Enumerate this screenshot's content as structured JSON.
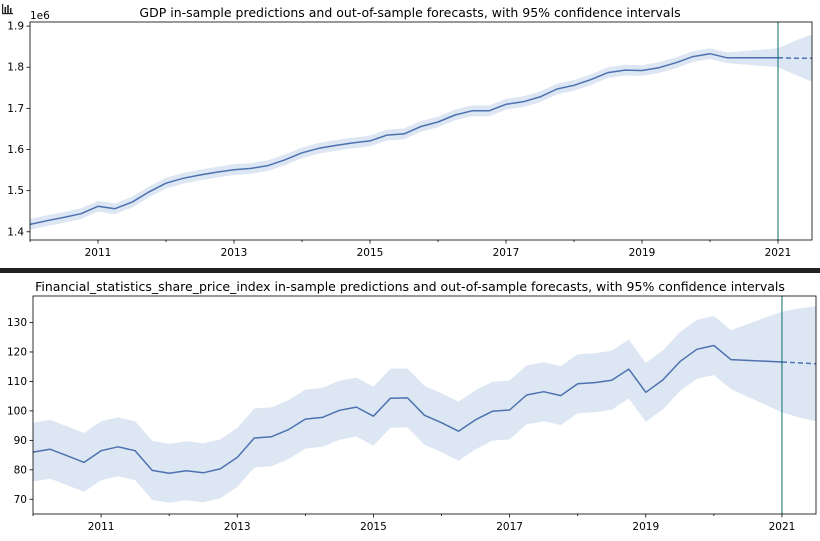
{
  "corner_icon": "bar-chart-icon",
  "chart_data": [
    {
      "type": "line",
      "title": "GDP in-sample predictions and out-of-sample forecasts, with 95% confidence intervals",
      "y_offset_label": "1e6",
      "y_scale": 1000000,
      "xlim": [
        2010.0,
        2021.5
      ],
      "ylim": [
        1.38,
        1.91
      ],
      "yticks": [
        1.4,
        1.5,
        1.6,
        1.7,
        1.8,
        1.9
      ],
      "xtick_labels": [
        "2011",
        "2013",
        "2015",
        "2017",
        "2019",
        "2021"
      ],
      "vline_x": 2021.0,
      "grid": false,
      "colors": {
        "line": "#4c72b0",
        "ci": "#dde6f3",
        "vline": "#0d6b6b"
      },
      "series": [
        {
          "style": "in-sample",
          "x": [
            2010.0,
            2010.25,
            2010.5,
            2010.75,
            2011.0,
            2011.25,
            2011.5,
            2011.75,
            2012.0,
            2012.25,
            2012.5,
            2012.75,
            2013.0,
            2013.25,
            2013.5,
            2013.75,
            2014.0,
            2014.25,
            2014.5,
            2014.75,
            2015.0,
            2015.25,
            2015.5,
            2015.75,
            2016.0,
            2016.25,
            2016.5,
            2016.75,
            2017.0,
            2017.25,
            2017.5,
            2017.75,
            2018.0,
            2018.25,
            2018.5,
            2018.75,
            2019.0,
            2019.25,
            2019.5,
            2019.75,
            2020.0,
            2020.25,
            2021.0
          ],
          "y": [
            1.418,
            1.427,
            1.435,
            1.444,
            1.462,
            1.456,
            1.472,
            1.497,
            1.518,
            1.53,
            1.538,
            1.545,
            1.551,
            1.554,
            1.561,
            1.575,
            1.592,
            1.603,
            1.61,
            1.616,
            1.621,
            1.635,
            1.638,
            1.656,
            1.667,
            1.684,
            1.694,
            1.694,
            1.71,
            1.716,
            1.728,
            1.747,
            1.756,
            1.77,
            1.787,
            1.793,
            1.792,
            1.799,
            1.811,
            1.826,
            1.833,
            1.823,
            1.823
          ],
          "ci_low": [
            1.405,
            1.414,
            1.422,
            1.431,
            1.449,
            1.443,
            1.459,
            1.484,
            1.505,
            1.517,
            1.525,
            1.532,
            1.538,
            1.541,
            1.548,
            1.562,
            1.579,
            1.59,
            1.597,
            1.603,
            1.608,
            1.622,
            1.625,
            1.643,
            1.654,
            1.671,
            1.681,
            1.681,
            1.697,
            1.703,
            1.715,
            1.734,
            1.743,
            1.757,
            1.774,
            1.78,
            1.779,
            1.786,
            1.798,
            1.813,
            1.82,
            1.81,
            1.8
          ],
          "ci_high": [
            1.431,
            1.44,
            1.448,
            1.457,
            1.475,
            1.469,
            1.485,
            1.51,
            1.531,
            1.543,
            1.551,
            1.558,
            1.564,
            1.567,
            1.574,
            1.588,
            1.605,
            1.616,
            1.623,
            1.629,
            1.634,
            1.648,
            1.651,
            1.669,
            1.68,
            1.697,
            1.707,
            1.707,
            1.723,
            1.729,
            1.741,
            1.76,
            1.769,
            1.783,
            1.8,
            1.806,
            1.805,
            1.812,
            1.824,
            1.839,
            1.846,
            1.836,
            1.846
          ]
        },
        {
          "style": "forecast",
          "x": [
            2021.0,
            2021.25,
            2021.5
          ],
          "y": [
            1.823,
            1.822,
            1.822
          ],
          "ci_low": [
            1.8,
            1.782,
            1.765
          ],
          "ci_high": [
            1.846,
            1.864,
            1.88
          ]
        }
      ]
    },
    {
      "type": "line",
      "title": "Financial_statistics_share_price_index in-sample predictions and out-of-sample forecasts, with 95% confidence intervals",
      "xlim": [
        2010.0,
        2021.5
      ],
      "ylim": [
        65,
        139
      ],
      "yticks": [
        70,
        80,
        90,
        100,
        110,
        120,
        130
      ],
      "xtick_labels": [
        "2011",
        "2013",
        "2015",
        "2017",
        "2019",
        "2021"
      ],
      "vline_x": 2021.0,
      "grid": false,
      "colors": {
        "line": "#4c72b0",
        "ci": "#dde6f3",
        "vline": "#0d6b6b"
      },
      "series": [
        {
          "style": "in-sample",
          "x": [
            2010.0,
            2010.25,
            2010.5,
            2010.75,
            2011.0,
            2011.25,
            2011.5,
            2011.75,
            2012.0,
            2012.25,
            2012.5,
            2012.75,
            2013.0,
            2013.25,
            2013.5,
            2013.75,
            2014.0,
            2014.25,
            2014.5,
            2014.75,
            2015.0,
            2015.25,
            2015.5,
            2015.75,
            2016.0,
            2016.25,
            2016.5,
            2016.75,
            2017.0,
            2017.25,
            2017.5,
            2017.75,
            2018.0,
            2018.25,
            2018.5,
            2018.75,
            2019.0,
            2019.25,
            2019.5,
            2019.75,
            2020.0,
            2020.25,
            2021.0
          ],
          "y": [
            86.0,
            87.0,
            84.8,
            82.5,
            86.5,
            87.8,
            86.5,
            79.8,
            78.8,
            79.7,
            79.0,
            80.3,
            84.2,
            90.8,
            91.2,
            93.6,
            97.2,
            97.8,
            100.2,
            101.3,
            98.2,
            104.3,
            104.4,
            98.5,
            96.0,
            93.1,
            97.0,
            99.9,
            100.3,
            105.4,
            106.5,
            105.2,
            109.2,
            109.6,
            110.4,
            114.2,
            106.3,
            110.5,
            116.7,
            120.9,
            122.2,
            117.4,
            116.6
          ],
          "ci_low": [
            76.0,
            77.0,
            74.8,
            72.5,
            76.5,
            77.8,
            76.5,
            69.8,
            68.8,
            69.7,
            69.0,
            70.3,
            74.2,
            80.8,
            81.2,
            83.6,
            87.2,
            87.8,
            90.2,
            91.3,
            88.2,
            94.3,
            94.4,
            88.5,
            86.0,
            83.1,
            87.0,
            89.9,
            90.3,
            95.4,
            96.5,
            95.2,
            99.2,
            99.6,
            100.4,
            104.2,
            96.3,
            100.5,
            106.7,
            110.9,
            112.2,
            107.4,
            99.5
          ],
          "ci_high": [
            96.0,
            97.0,
            94.8,
            92.5,
            96.5,
            97.8,
            96.5,
            89.8,
            88.8,
            89.7,
            89.0,
            90.3,
            94.2,
            100.8,
            101.2,
            103.6,
            107.2,
            107.8,
            110.2,
            111.3,
            108.2,
            114.3,
            114.4,
            108.5,
            106.0,
            103.1,
            107.0,
            109.9,
            110.3,
            115.4,
            116.5,
            115.2,
            119.2,
            119.6,
            120.4,
            124.2,
            116.3,
            120.5,
            126.7,
            130.9,
            132.2,
            127.4,
            133.7
          ]
        },
        {
          "style": "forecast",
          "x": [
            2021.0,
            2021.25,
            2021.5
          ],
          "y": [
            116.6,
            116.3,
            116.0
          ],
          "ci_low": [
            99.5,
            97.8,
            96.5
          ],
          "ci_high": [
            133.7,
            134.8,
            135.5
          ]
        }
      ]
    }
  ]
}
